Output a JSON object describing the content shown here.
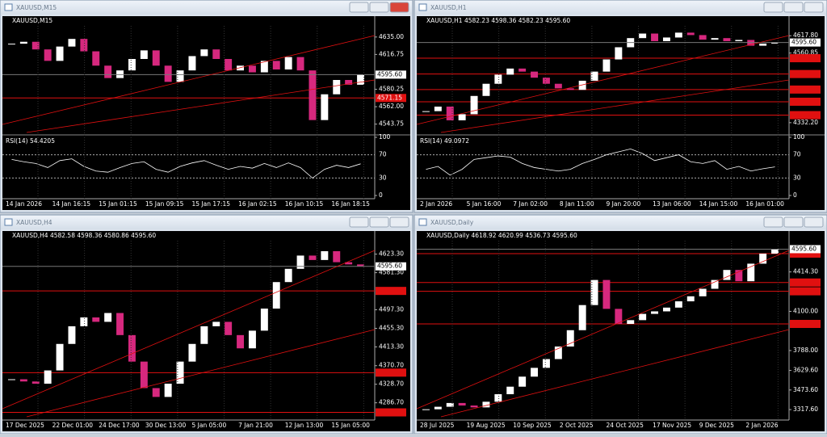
{
  "windows": [
    {
      "title": "XAUUSD,M15",
      "chart_data": {
        "type": "candlestick",
        "header": "XAUUSD,M15",
        "values": [
          4628,
          4630,
          4622,
          4610,
          4625,
          4633,
          4620,
          4605,
          4592,
          4600,
          4612,
          4621,
          4605,
          4588,
          4600,
          4615,
          4622,
          4612,
          4600,
          4605,
          4598,
          4610,
          4601,
          4614,
          4600,
          4548,
          4575,
          4590,
          4585,
          4595.6
        ],
        "up_color": "#ffffff",
        "down_color": "#d6287e",
        "ylim": [
          4535,
          4645
        ],
        "yticks": [
          {
            "value": 4635,
            "label": "4635.00"
          },
          {
            "value": 4616.75,
            "label": "4616.75"
          },
          {
            "value": 4580.25,
            "label": "4580.25"
          },
          {
            "value": 4562,
            "label": "4562.00"
          },
          {
            "value": 4543.75,
            "label": "4543.75"
          }
        ],
        "last_price": {
          "value": 4595.6,
          "label": "4595.60"
        },
        "hlines": [
          4571.15
        ],
        "hline_labels": [
          "4571.15"
        ],
        "hline_color": "#e01010",
        "xlabels": [
          "14 Jan 2026",
          "14 Jan 16:15",
          "15 Jan 01:15",
          "15 Jan 09:15",
          "15 Jan 17:15",
          "16 Jan 02:15",
          "16 Jan 10:15",
          "16 Jan 18:15"
        ],
        "rsi": {
          "label": "RSI(14) 54.4205",
          "values": [
            62,
            58,
            55,
            48,
            60,
            63,
            50,
            42,
            40,
            48,
            55,
            58,
            45,
            40,
            50,
            56,
            60,
            52,
            45,
            50,
            47,
            55,
            48,
            56,
            48,
            30,
            45,
            52,
            48,
            54.4205
          ],
          "ylim": [
            0,
            100
          ],
          "yticks": [
            100,
            70,
            30,
            0
          ]
        }
      }
    },
    {
      "title": "XAUUSD,H1",
      "chart_data": {
        "type": "candlestick",
        "header": "XAUUSD,H1  4582.23 4598.36 4582.23 4595.60",
        "values": [
          4370,
          4385,
          4340,
          4360,
          4420,
          4460,
          4490,
          4510,
          4500,
          4480,
          4460,
          4445,
          4440,
          4470,
          4500,
          4540,
          4580,
          4610,
          4625,
          4600,
          4612,
          4628,
          4620,
          4605,
          4610,
          4600,
          4604,
          4585,
          4592,
          4595.6
        ],
        "up_color": "#ffffff",
        "down_color": "#d6287e",
        "ylim": [
          4300,
          4645
        ],
        "yticks": [
          {
            "value": 4617.8,
            "label": "4617.80"
          },
          {
            "value": 4560.85,
            "label": "4560.85"
          },
          {
            "value": 4332.2,
            "label": "4332.20"
          }
        ],
        "last_price": {
          "value": 4595.6,
          "label": "4595.60"
        },
        "hlines": [
          4544,
          4492,
          4441,
          4401,
          4357
        ],
        "hline_color": "#e01010",
        "xlabels": [
          "2 Jan 2026",
          "5 Jan 16:00",
          "7 Jan 02:00",
          "8 Jan 11:00",
          "9 Jan 20:00",
          "13 Jan 06:00",
          "14 Jan 15:00",
          "16 Jan 01:00"
        ],
        "rsi": {
          "label": "RSI(14) 49.0972",
          "values": [
            45,
            50,
            35,
            45,
            62,
            65,
            68,
            66,
            55,
            48,
            45,
            42,
            45,
            55,
            62,
            70,
            75,
            80,
            72,
            60,
            65,
            70,
            58,
            55,
            60,
            45,
            50,
            42,
            46,
            49.0972
          ],
          "ylim": [
            0,
            100
          ],
          "yticks": [
            100,
            70,
            30,
            0
          ]
        }
      }
    },
    {
      "title": "XAUUSD,H4",
      "chart_data": {
        "type": "candlestick",
        "header": "XAUUSD,H4  4582.58 4598.36 4580.86 4595.60",
        "values": [
          4340,
          4335,
          4330,
          4360,
          4420,
          4460,
          4480,
          4470,
          4490,
          4440,
          4380,
          4320,
          4300,
          4330,
          4380,
          4420,
          4460,
          4470,
          4440,
          4410,
          4450,
          4500,
          4560,
          4590,
          4620,
          4610,
          4630,
          4605,
          4600,
          4595.6
        ],
        "up_color": "#ffffff",
        "down_color": "#d6287e",
        "ylim": [
          4255,
          4650
        ],
        "yticks": [
          {
            "value": 4623.3,
            "label": "4623.30"
          },
          {
            "value": 4581.3,
            "label": "4581.30"
          },
          {
            "value": 4497.3,
            "label": "4497.30"
          },
          {
            "value": 4455.3,
            "label": "4455.30"
          },
          {
            "value": 4413.3,
            "label": "4413.30"
          },
          {
            "value": 4370.7,
            "label": "4370.70"
          },
          {
            "value": 4328.7,
            "label": "4328.70"
          },
          {
            "value": 4286.7,
            "label": "4286.70"
          }
        ],
        "last_price": {
          "value": 4595.6,
          "label": "4595.60"
        },
        "hlines": [
          4540,
          4355,
          4265
        ],
        "hline_color": "#e01010",
        "xlabels": [
          "17 Dec 2025",
          "22 Dec 01:00",
          "24 Dec 17:00",
          "30 Dec 13:00",
          "5 Jan 05:00",
          "7 Jan 21:00",
          "12 Jan 13:00",
          "15 Jan 05:00"
        ]
      }
    },
    {
      "title": "XAUUSD,Daily",
      "chart_data": {
        "type": "candlestick",
        "header": "XAUUSD,Daily  4618.92 4620.99 4536.73 4595.60",
        "values": [
          3320,
          3340,
          3370,
          3350,
          3335,
          3380,
          3440,
          3500,
          3580,
          3650,
          3720,
          3820,
          3950,
          4150,
          4350,
          4120,
          4000,
          4030,
          4080,
          4100,
          4130,
          4180,
          4220,
          4280,
          4350,
          4430,
          4340,
          4480,
          4560,
          4595.6
        ],
        "up_color": "#ffffff",
        "down_color": "#d6287e",
        "ylim": [
          3260,
          4650
        ],
        "yticks": [
          {
            "value": 4414.3,
            "label": "4414.30"
          },
          {
            "value": 4100,
            "label": "4100.00"
          },
          {
            "value": 3788,
            "label": "3788.00"
          },
          {
            "value": 3629.6,
            "label": "3629.60"
          },
          {
            "value": 3473.6,
            "label": "3473.60"
          },
          {
            "value": 3317.6,
            "label": "3317.60"
          }
        ],
        "last_price": {
          "value": 4595.6,
          "label": "4595.60"
        },
        "hlines": [
          4560,
          4330,
          4260,
          4000
        ],
        "hline_color": "#e01010",
        "xlabels": [
          "28 Jul 2025",
          "19 Aug 2025",
          "10 Sep 2025",
          "2 Oct 2025",
          "24 Oct 2025",
          "17 Nov 2025",
          "9 Dec 2025",
          "2 Jan 2026"
        ]
      }
    }
  ]
}
